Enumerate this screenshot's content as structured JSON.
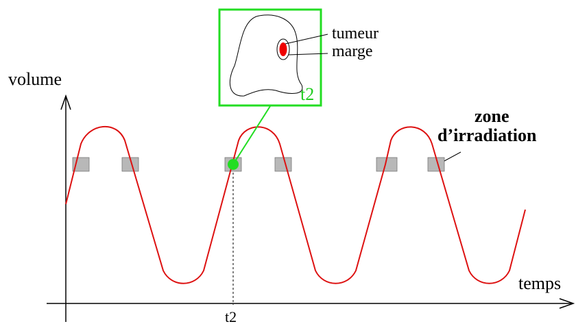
{
  "axes": {
    "y_label": "volume",
    "x_label": "temps",
    "x_tick": "t2"
  },
  "zone_label": {
    "line1": "zone",
    "line2": "d’irradiation"
  },
  "inset": {
    "time_label": "t2",
    "tumor_label": "tumeur",
    "margin_label": "marge"
  },
  "colors": {
    "curve": "#dd1111",
    "highlight": "#22dd22",
    "zone_fill": "#b8b8b8",
    "tumor": "#ee0000"
  }
}
